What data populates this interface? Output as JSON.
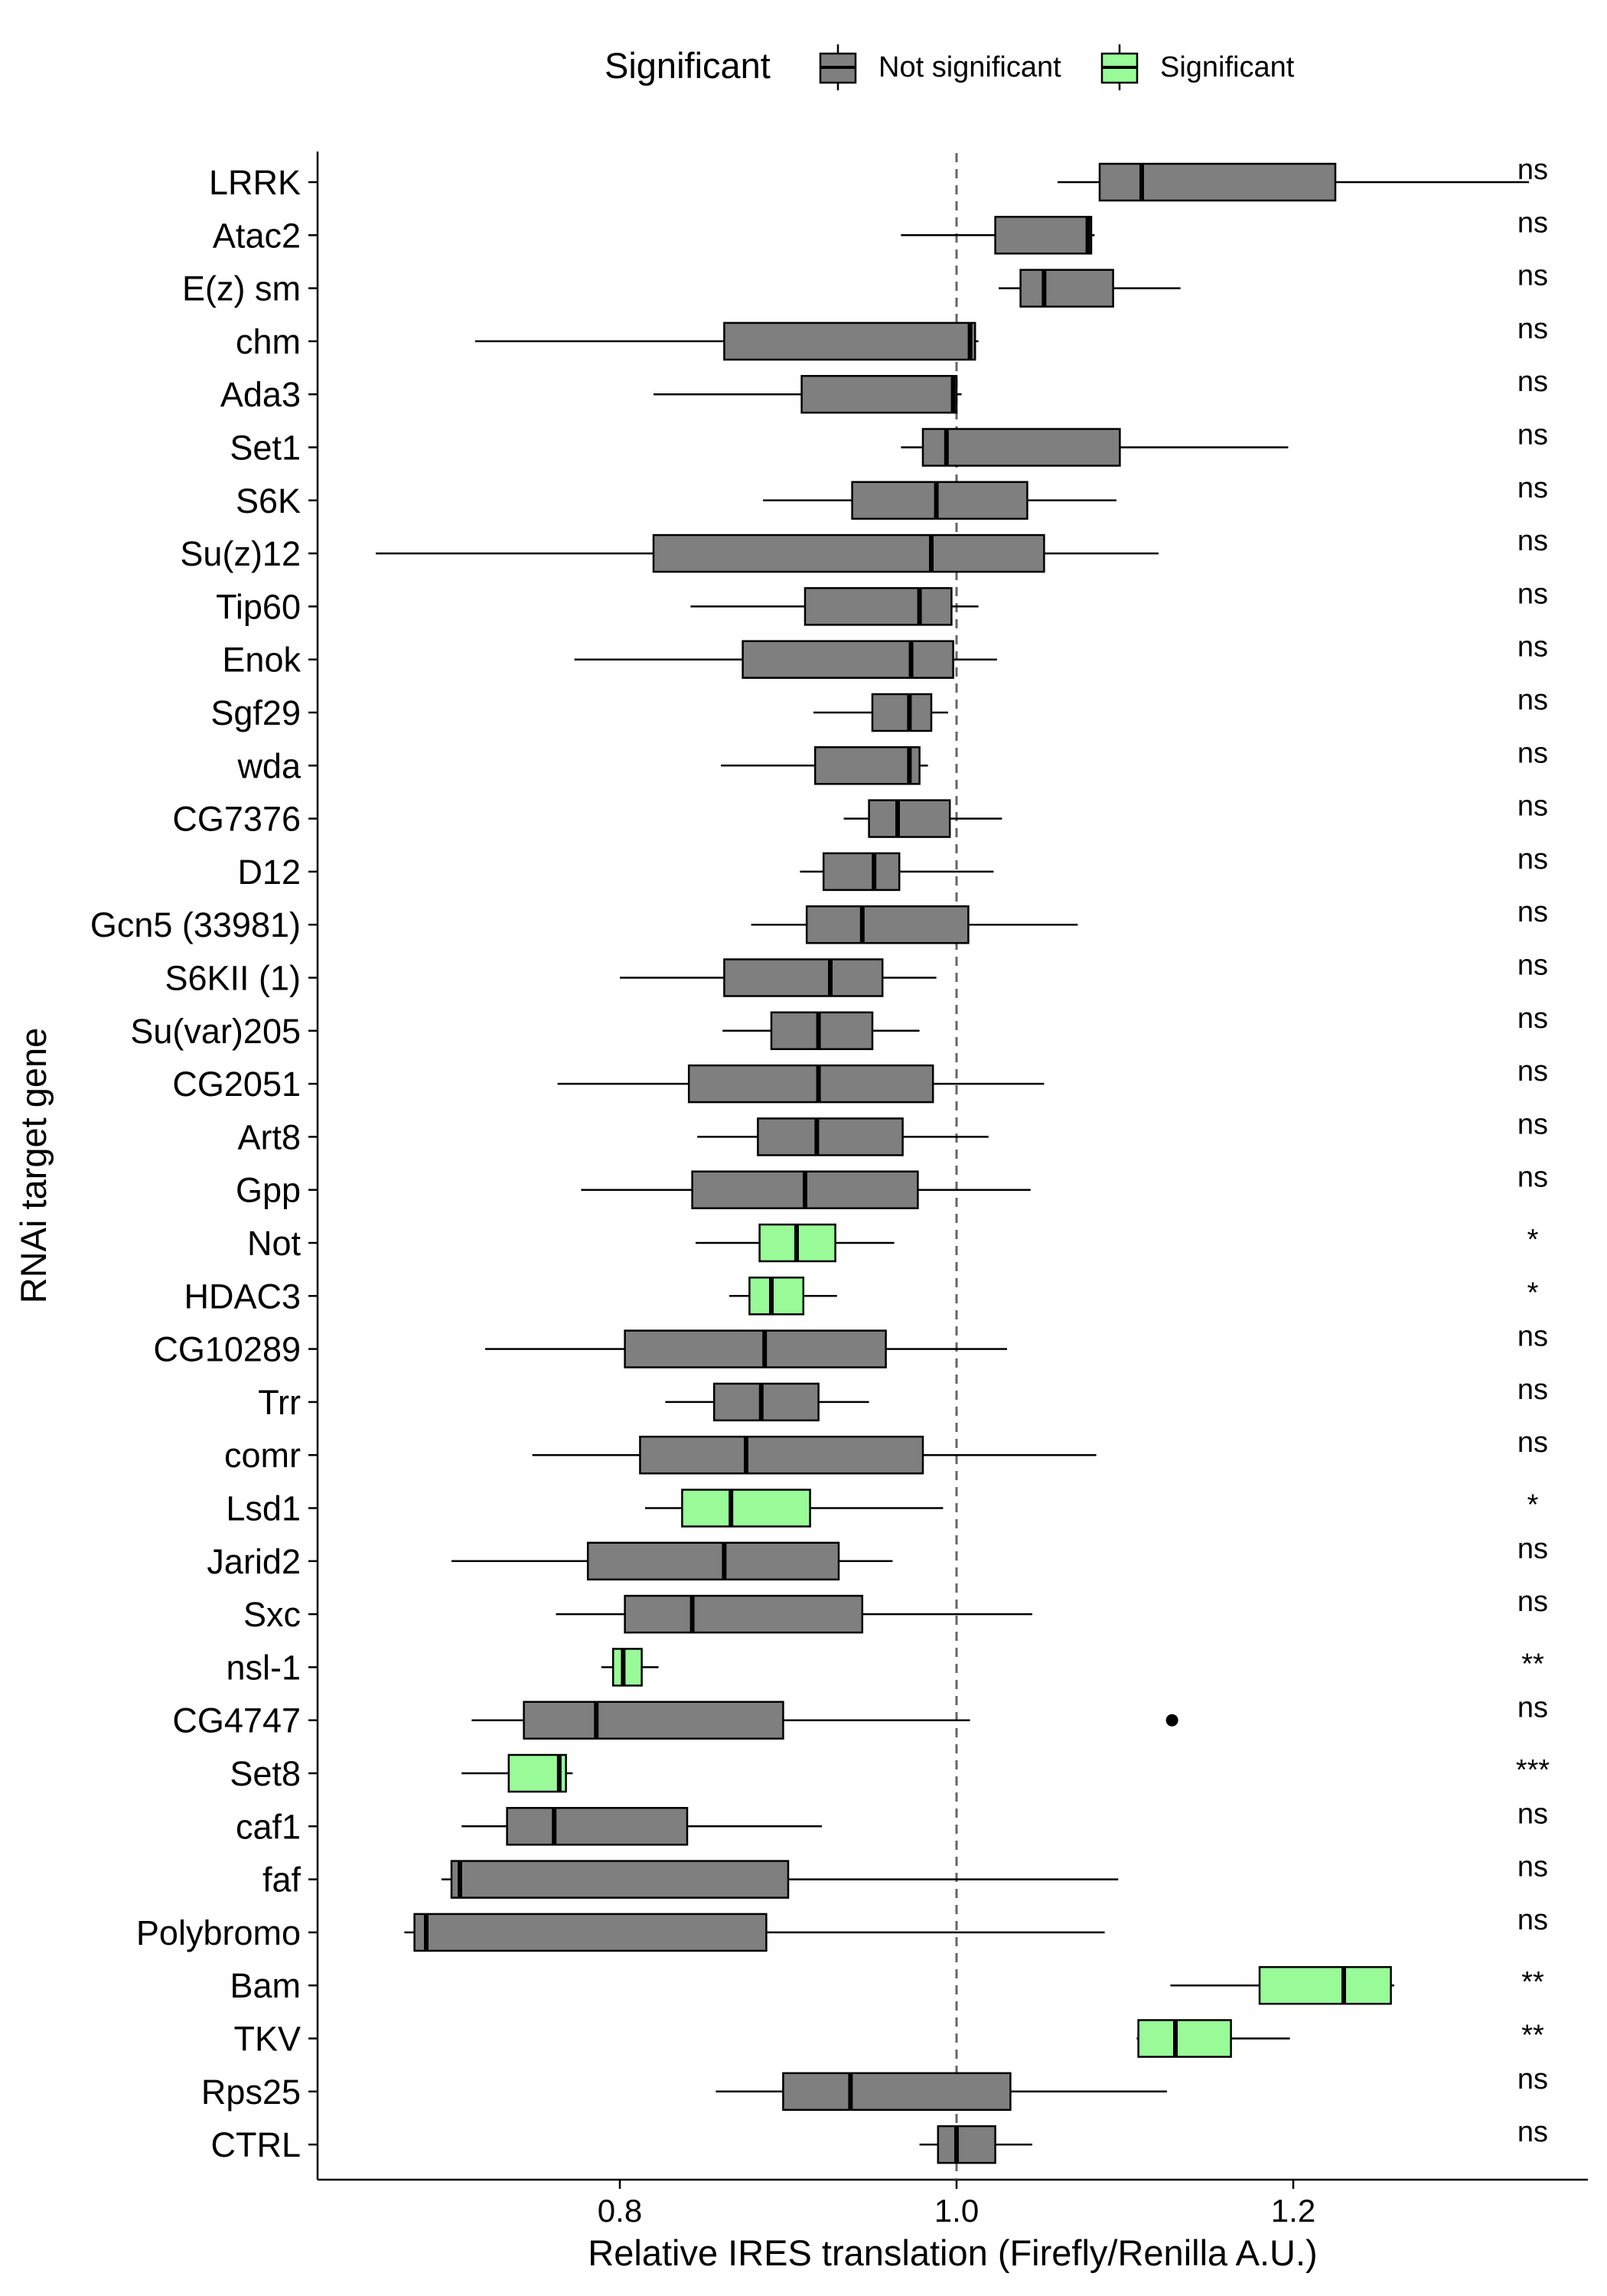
{
  "chart_data": {
    "type": "boxplot",
    "xlabel": "Relative IRES translation (Firefly/Renilla A.U.)",
    "ylabel": "RNAi target gene",
    "xlim": [
      0.635,
      1.37
    ],
    "x_ticks": [
      0.8,
      1.0,
      1.2
    ],
    "x_tick_labels": [
      "0.8",
      "1.0",
      "1.2"
    ],
    "reference_line": 1.0,
    "grid": false,
    "legend": {
      "title": "Significant",
      "position": "top",
      "entries": [
        {
          "label": "Not significant",
          "color": "#7f7f7f"
        },
        {
          "label": "Significant",
          "color": "#98fb98"
        }
      ]
    },
    "colors": {
      "not_significant": "#7f7f7f",
      "significant": "#98fb98"
    },
    "genes": [
      {
        "name": "LRRK",
        "sig": "ns",
        "significant": false,
        "min": 1.06,
        "q1": 1.085,
        "median": 1.11,
        "q3": 1.225,
        "max": 1.34
      },
      {
        "name": "Atac2",
        "sig": "ns",
        "significant": false,
        "min": 0.967,
        "q1": 1.023,
        "median": 1.078,
        "q3": 1.08,
        "max": 1.082
      },
      {
        "name": "E(z) sm",
        "sig": "ns",
        "significant": false,
        "min": 1.025,
        "q1": 1.038,
        "median": 1.052,
        "q3": 1.093,
        "max": 1.133
      },
      {
        "name": "chm",
        "sig": "ns",
        "significant": false,
        "min": 0.714,
        "q1": 0.862,
        "median": 1.008,
        "q3": 1.011,
        "max": 1.013
      },
      {
        "name": "Ada3",
        "sig": "ns",
        "significant": false,
        "min": 0.82,
        "q1": 0.908,
        "median": 0.998,
        "q3": 1.0,
        "max": 1.003
      },
      {
        "name": "Set1",
        "sig": "ns",
        "significant": false,
        "min": 0.967,
        "q1": 0.98,
        "median": 0.994,
        "q3": 1.097,
        "max": 1.197
      },
      {
        "name": "S6K",
        "sig": "ns",
        "significant": false,
        "min": 0.885,
        "q1": 0.938,
        "median": 0.988,
        "q3": 1.042,
        "max": 1.095
      },
      {
        "name": "Su(z)12",
        "sig": "ns",
        "significant": false,
        "min": 0.655,
        "q1": 0.82,
        "median": 0.985,
        "q3": 1.052,
        "max": 1.12
      },
      {
        "name": "Tip60",
        "sig": "ns",
        "significant": false,
        "min": 0.842,
        "q1": 0.91,
        "median": 0.978,
        "q3": 0.997,
        "max": 1.013
      },
      {
        "name": "Enok",
        "sig": "ns",
        "significant": false,
        "min": 0.773,
        "q1": 0.873,
        "median": 0.973,
        "q3": 0.998,
        "max": 1.024
      },
      {
        "name": "Sgf29",
        "sig": "ns",
        "significant": false,
        "min": 0.915,
        "q1": 0.95,
        "median": 0.972,
        "q3": 0.985,
        "max": 0.995
      },
      {
        "name": "wda",
        "sig": "ns",
        "significant": false,
        "min": 0.86,
        "q1": 0.916,
        "median": 0.972,
        "q3": 0.978,
        "max": 0.983
      },
      {
        "name": "CG7376",
        "sig": "ns",
        "significant": false,
        "min": 0.933,
        "q1": 0.948,
        "median": 0.965,
        "q3": 0.996,
        "max": 1.027
      },
      {
        "name": "D12",
        "sig": "ns",
        "significant": false,
        "min": 0.907,
        "q1": 0.921,
        "median": 0.951,
        "q3": 0.966,
        "max": 1.022
      },
      {
        "name": "Gcn5 (33981)",
        "sig": "ns",
        "significant": false,
        "min": 0.878,
        "q1": 0.911,
        "median": 0.944,
        "q3": 1.007,
        "max": 1.072
      },
      {
        "name": "S6KII (1)",
        "sig": "ns",
        "significant": false,
        "min": 0.8,
        "q1": 0.862,
        "median": 0.925,
        "q3": 0.956,
        "max": 0.988
      },
      {
        "name": "Su(var)205",
        "sig": "ns",
        "significant": false,
        "min": 0.861,
        "q1": 0.89,
        "median": 0.918,
        "q3": 0.95,
        "max": 0.978
      },
      {
        "name": "CG2051",
        "sig": "ns",
        "significant": false,
        "min": 0.763,
        "q1": 0.841,
        "median": 0.918,
        "q3": 0.986,
        "max": 1.052
      },
      {
        "name": "Art8",
        "sig": "ns",
        "significant": false,
        "min": 0.846,
        "q1": 0.882,
        "median": 0.917,
        "q3": 0.968,
        "max": 1.019
      },
      {
        "name": "Gpp",
        "sig": "ns",
        "significant": false,
        "min": 0.777,
        "q1": 0.843,
        "median": 0.91,
        "q3": 0.977,
        "max": 1.044
      },
      {
        "name": "Not",
        "sig": "*",
        "significant": true,
        "min": 0.845,
        "q1": 0.883,
        "median": 0.905,
        "q3": 0.928,
        "max": 0.963
      },
      {
        "name": "HDAC3",
        "sig": "*",
        "significant": true,
        "min": 0.865,
        "q1": 0.877,
        "median": 0.89,
        "q3": 0.909,
        "max": 0.929
      },
      {
        "name": "CG10289",
        "sig": "ns",
        "significant": false,
        "min": 0.72,
        "q1": 0.803,
        "median": 0.886,
        "q3": 0.958,
        "max": 1.03
      },
      {
        "name": "Trr",
        "sig": "ns",
        "significant": false,
        "min": 0.827,
        "q1": 0.856,
        "median": 0.884,
        "q3": 0.918,
        "max": 0.948
      },
      {
        "name": "comr",
        "sig": "ns",
        "significant": false,
        "min": 0.748,
        "q1": 0.812,
        "median": 0.875,
        "q3": 0.98,
        "max": 1.083
      },
      {
        "name": "Lsd1",
        "sig": "*",
        "significant": true,
        "min": 0.815,
        "q1": 0.837,
        "median": 0.866,
        "q3": 0.913,
        "max": 0.992
      },
      {
        "name": "Jarid2",
        "sig": "ns",
        "significant": false,
        "min": 0.7,
        "q1": 0.781,
        "median": 0.862,
        "q3": 0.93,
        "max": 0.962
      },
      {
        "name": "Sxc",
        "sig": "ns",
        "significant": false,
        "min": 0.762,
        "q1": 0.803,
        "median": 0.843,
        "q3": 0.944,
        "max": 1.045
      },
      {
        "name": "nsl-1",
        "sig": "**",
        "significant": true,
        "min": 0.789,
        "q1": 0.796,
        "median": 0.802,
        "q3": 0.813,
        "max": 0.823
      },
      {
        "name": "CG4747",
        "sig": "ns",
        "significant": false,
        "min": 0.712,
        "q1": 0.743,
        "median": 0.786,
        "q3": 0.897,
        "max": 1.008,
        "outliers": [
          1.128
        ]
      },
      {
        "name": "Set8",
        "sig": "***",
        "significant": true,
        "min": 0.706,
        "q1": 0.734,
        "median": 0.764,
        "q3": 0.768,
        "max": 0.772
      },
      {
        "name": "caf1",
        "sig": "ns",
        "significant": false,
        "min": 0.706,
        "q1": 0.733,
        "median": 0.761,
        "q3": 0.84,
        "max": 0.92
      },
      {
        "name": "faf",
        "sig": "ns",
        "significant": false,
        "min": 0.694,
        "q1": 0.7,
        "median": 0.705,
        "q3": 0.9,
        "max": 1.096
      },
      {
        "name": "Polybromo",
        "sig": "ns",
        "significant": false,
        "min": 0.672,
        "q1": 0.678,
        "median": 0.685,
        "q3": 0.887,
        "max": 1.088
      },
      {
        "name": "Bam",
        "sig": "**",
        "significant": true,
        "min": 1.127,
        "q1": 1.18,
        "median": 1.23,
        "q3": 1.258,
        "max": 1.26
      },
      {
        "name": "TKV",
        "sig": "**",
        "significant": true,
        "min": 1.107,
        "q1": 1.108,
        "median": 1.13,
        "q3": 1.163,
        "max": 1.198
      },
      {
        "name": "Rps25",
        "sig": "ns",
        "significant": false,
        "min": 0.857,
        "q1": 0.897,
        "median": 0.937,
        "q3": 1.032,
        "max": 1.125
      },
      {
        "name": "CTRL",
        "sig": "ns",
        "significant": false,
        "min": 0.978,
        "q1": 0.989,
        "median": 1.0,
        "q3": 1.023,
        "max": 1.045
      }
    ]
  }
}
